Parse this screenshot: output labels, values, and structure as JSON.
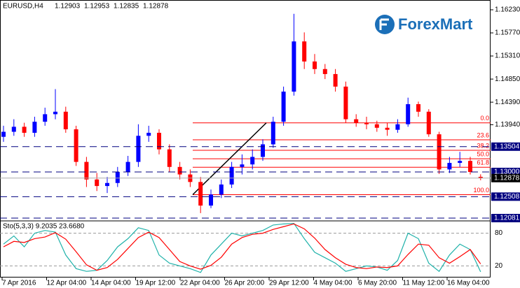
{
  "chart_data": [
    {
      "type": "candlestick",
      "title": "EURUSD,H4",
      "open": [
        1.137,
        1.138,
        1.139,
        1.1378,
        1.14,
        1.1415,
        1.142,
        1.1385,
        1.132,
        1.1285,
        1.1272,
        1.1278,
        1.13,
        1.132,
        1.1372,
        1.1378,
        1.1345,
        1.131,
        1.1295,
        1.128,
        1.1233,
        1.1255,
        1.1275,
        1.131,
        1.1315,
        1.133,
        1.1355,
        1.14,
        1.146,
        1.156,
        1.152,
        1.1505,
        1.1495,
        1.147,
        1.1405,
        1.1398,
        1.1395,
        1.1388,
        1.1384,
        1.1395,
        1.1435,
        1.142,
        1.1375,
        1.1305,
        1.1318,
        1.1322,
        1.12903
      ],
      "high": [
        1.1392,
        1.1405,
        1.1398,
        1.141,
        1.1428,
        1.1465,
        1.143,
        1.1392,
        1.133,
        1.1298,
        1.129,
        1.131,
        1.1332,
        1.1395,
        1.1392,
        1.1385,
        1.1355,
        1.132,
        1.1305,
        1.129,
        1.1265,
        1.1285,
        1.132,
        1.1335,
        1.1345,
        1.1365,
        1.141,
        1.147,
        1.1615,
        1.1578,
        1.1535,
        1.1515,
        1.1505,
        1.148,
        1.1415,
        1.141,
        1.1402,
        1.1398,
        1.1405,
        1.1448,
        1.144,
        1.1425,
        1.138,
        1.133,
        1.134,
        1.133,
        1.12953
      ],
      "low": [
        1.136,
        1.1372,
        1.137,
        1.137,
        1.1392,
        1.1405,
        1.1378,
        1.1312,
        1.127,
        1.1262,
        1.1258,
        1.127,
        1.1292,
        1.131,
        1.136,
        1.1335,
        1.13,
        1.1285,
        1.127,
        1.1218,
        1.1228,
        1.1248,
        1.1268,
        1.1295,
        1.1305,
        1.1322,
        1.1348,
        1.1392,
        1.1452,
        1.1505,
        1.1495,
        1.1485,
        1.146,
        1.1398,
        1.139,
        1.1385,
        1.138,
        1.1372,
        1.1378,
        1.139,
        1.141,
        1.137,
        1.1296,
        1.1298,
        1.131,
        1.1295,
        1.12835
      ],
      "close": [
        1.138,
        1.139,
        1.1378,
        1.14,
        1.1415,
        1.142,
        1.1385,
        1.132,
        1.1285,
        1.1272,
        1.1278,
        1.13,
        1.132,
        1.1372,
        1.1378,
        1.1345,
        1.131,
        1.1295,
        1.128,
        1.1233,
        1.1255,
        1.1275,
        1.131,
        1.1315,
        1.133,
        1.1355,
        1.14,
        1.146,
        1.156,
        1.152,
        1.1505,
        1.1495,
        1.147,
        1.1405,
        1.1398,
        1.1395,
        1.1388,
        1.1384,
        1.1395,
        1.1435,
        1.142,
        1.1375,
        1.1305,
        1.1318,
        1.1322,
        1.13,
        1.12878
      ],
      "up_color": "#0000ff",
      "down_color": "#ff0000",
      "ylim": [
        1.12039,
        1.16425
      ],
      "yticks": [
        {
          "value": 1.1623,
          "label": "1.16230"
        },
        {
          "value": 1.1577,
          "label": "1.15770"
        },
        {
          "value": 1.1531,
          "label": "1.15310"
        },
        {
          "value": 1.1485,
          "label": "1.14850"
        },
        {
          "value": 1.1439,
          "label": "1.14390"
        },
        {
          "value": 1.1394,
          "label": "1.13940"
        }
      ],
      "levels": [
        1.13504,
        {
          "value": 1.13,
          "label": "1.13000"
        },
        1.12508,
        1.12081
      ],
      "level_color": "#000080",
      "fibonacci": {
        "labels": [
          "0.0",
          "23.6",
          "38.2",
          "50.0",
          "61.8",
          "100.0"
        ],
        "values": [
          1.13978,
          1.1364,
          1.13431,
          1.13262,
          1.13094,
          1.12547
        ],
        "color": "#ff0000"
      },
      "x_labels": [
        "7 Apr 2016",
        "12 Apr 04:00",
        "14 Apr 04:00",
        "19 Apr 12:00",
        "22 Apr 04:00",
        "26 Apr 20:00",
        "29 Apr 12:00",
        "4 May 04:00",
        "6 May 20:00",
        "11 May 12:00",
        "16 May 04:00"
      ],
      "logo": "ForexMart"
    },
    {
      "type": "line",
      "title": "Sto(5,3,3) 9.2035 23.6680",
      "series": [
        {
          "color": "#20b2aa",
          "values": [
            60,
            75,
            55,
            80,
            85,
            82,
            40,
            15,
            10,
            12,
            30,
            55,
            70,
            90,
            85,
            40,
            25,
            20,
            15,
            8,
            40,
            60,
            80,
            75,
            80,
            85,
            95,
            97,
            98,
            70,
            45,
            35,
            25,
            10,
            15,
            20,
            18,
            12,
            30,
            80,
            70,
            25,
            10,
            40,
            60,
            50,
            9.2035
          ]
        },
        {
          "color": "#ff0000",
          "values": [
            55,
            65,
            63,
            70,
            73,
            81,
            69,
            46,
            22,
            12,
            17,
            32,
            52,
            72,
            82,
            72,
            50,
            28,
            20,
            14,
            21,
            36,
            60,
            72,
            78,
            80,
            87,
            92,
            97,
            88,
            71,
            50,
            35,
            23,
            17,
            15,
            18,
            17,
            20,
            41,
            60,
            58,
            35,
            25,
            37,
            50,
            23.668
          ]
        }
      ],
      "ylim": [
        0,
        100
      ],
      "yticks": [
        80,
        20
      ]
    }
  ]
}
